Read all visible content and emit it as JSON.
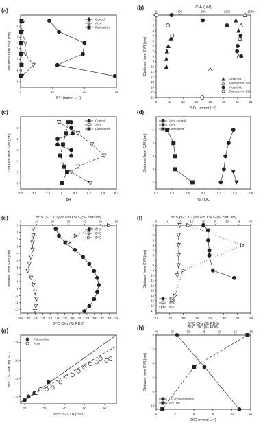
{
  "chart_data": [
    {
      "panel": "(a)",
      "type": "line",
      "xlabel": "S²⁻ (mmol L⁻¹)",
      "ylabel": "Distance from SWI (cm)",
      "xlim": [
        0,
        30
      ],
      "ylim": [
        6.5,
        0
      ],
      "y_inverted": true,
      "xticks": [
        0,
        10,
        20,
        30
      ],
      "yticks": [
        1,
        2,
        3,
        4,
        5,
        6
      ],
      "legend": "top-right",
      "series": [
        {
          "name": "Control",
          "marker": "circle-filled",
          "dash": "solid",
          "x": [
            9,
            12,
            20,
            19.5,
            11.5,
            29.5
          ],
          "y": [
            0.5,
            1.5,
            2.5,
            3.5,
            4.5,
            5.5
          ]
        },
        {
          "name": "Acre",
          "marker": "triangle-down-open",
          "dash": "dashed",
          "x": [
            1,
            0.5,
            1.5,
            1.5,
            4,
            0.5
          ],
          "y": [
            0.5,
            1.5,
            2.5,
            3.5,
            4.5,
            5.5
          ]
        },
        {
          "name": "Palmachim",
          "marker": "square-filled",
          "dash": "dashdot",
          "x": [
            0.3,
            0.2,
            0.2,
            0.2,
            0.3,
            0.2
          ],
          "y": [
            0.5,
            1.5,
            2.5,
            3.5,
            4.5,
            5.5
          ]
        }
      ]
    },
    {
      "panel": "(b)",
      "type": "scatter",
      "xlabel": "SO₄ (mmol L⁻¹)",
      "x2label": "CH₄ (μM)",
      "ylabel": "Distance from SWI (cm)",
      "xlim": [
        0,
        35
      ],
      "x2lim": [
        0,
        1600
      ],
      "ylim": [
        16,
        0
      ],
      "y_inverted": true,
      "xticks": [
        0,
        5,
        10,
        15,
        20,
        25,
        30,
        35
      ],
      "x2ticks": [
        0,
        400,
        800,
        1200,
        1600
      ],
      "yticks": [
        0,
        1,
        2,
        3,
        4,
        5,
        6,
        7,
        8,
        9,
        10,
        11,
        12,
        13,
        14,
        15,
        16
      ],
      "legend": "bottom-right",
      "series": [
        {
          "name": "Acre SO₄",
          "marker": "triangle-filled",
          "axis": "bottom",
          "x": [
            29.5,
            30.5,
            5.5,
            4.5,
            4.0,
            3.8,
            3.8
          ],
          "y": [
            1,
            3,
            4.5,
            6,
            7,
            8.5,
            10
          ]
        },
        {
          "name": "Palmachim SO₄",
          "marker": "triangle-open",
          "axis": "bottom",
          "x": [
            33,
            31.5,
            31,
            30.5,
            20
          ],
          "y": [
            0,
            2,
            4.5,
            8,
            10.5
          ]
        },
        {
          "name": "Acre CH₄",
          "marker": "circle-filled",
          "axis": "top",
          "x": [
            260,
            790,
            1200,
            1430,
            1380,
            1370,
            1440
          ],
          "y": [
            0,
            1,
            2,
            4,
            6,
            7,
            8
          ]
        },
        {
          "name": "Palmachim CH₄",
          "marker": "circle-open",
          "axis": "top",
          "x": [
            0,
            200,
            270,
            780
          ],
          "y": [
            0,
            2,
            4,
            16
          ]
        }
      ]
    },
    {
      "panel": "(c)",
      "type": "line",
      "xlabel": "pH",
      "ylabel": "Distance from SWI (cm)",
      "xlim": [
        7.7,
        8.4
      ],
      "ylim": [
        6.5,
        0
      ],
      "y_inverted": true,
      "xticks": [
        7.7,
        7.8,
        7.9,
        8.0,
        8.1,
        8.2,
        8.3,
        8.4
      ],
      "yticks": [
        1,
        2,
        3,
        4,
        5,
        6
      ],
      "legend": "top-right",
      "series": [
        {
          "name": "Control",
          "marker": "circle-filled",
          "dash": "solid",
          "x": [
            8.07,
            8.07,
            8.08,
            7.97,
            7.97,
            8.07,
            8.07
          ],
          "y": [
            0.5,
            1,
            1.5,
            2,
            2.5,
            3,
            3.5
          ]
        },
        {
          "name": "Acre",
          "marker": "triangle-down-open",
          "dash": "dashed",
          "x": [
            7.98,
            8.12,
            8.22,
            8.31,
            8.12,
            8.07,
            8.21
          ],
          "y": [
            0.5,
            1.5,
            2.5,
            3.5,
            4.5,
            5,
            6
          ]
        },
        {
          "name": "Palmachim",
          "marker": "square-filled",
          "dash": "dashdot",
          "x": [
            8.05,
            8.03,
            8.01,
            7.99,
            8.02,
            8.04,
            8.0
          ],
          "y": [
            0.5,
            1.5,
            2.5,
            3.5,
            4.5,
            5,
            6
          ]
        }
      ]
    },
    {
      "panel": "(d)",
      "type": "line",
      "xlabel": "% TOC",
      "ylabel": "Distance from SWI (cm)",
      "xlim": [
        0.3,
        0.9
      ],
      "ylim": [
        5.5,
        0
      ],
      "y_inverted": true,
      "xticks": [
        0.3,
        0.4,
        0.5,
        0.6,
        0.7,
        0.8,
        0.9
      ],
      "yticks": [
        1,
        2,
        3,
        4,
        5
      ],
      "legend": "top-left",
      "series": [
        {
          "name": "Acre control",
          "marker": "circle-filled",
          "dash": "solid",
          "x": [
            0.79,
            0.76,
            0.74,
            0.73,
            0.71
          ],
          "y": [
            1,
            2,
            3,
            4,
            5
          ]
        },
        {
          "name": "Acre",
          "marker": "triangle-down-filled",
          "dash": "solid",
          "x": [
            0.79,
            0.81
          ],
          "y": [
            4.2,
            5
          ]
        },
        {
          "name": "Palmachim",
          "marker": "square-filled",
          "dash": "solid",
          "x": [
            0.37,
            0.41,
            0.42,
            0.42,
            0.53
          ],
          "y": [
            1,
            2,
            3,
            4,
            5
          ]
        }
      ]
    },
    {
      "panel": "(e)",
      "type": "line",
      "xlabel": "δ¹³C CH₄ (‰ PDB)",
      "x2label": "δ³⁴S (‰ CDT) or δ¹⁸O SO₄ (‰ SMOW)",
      "ylabel": "Distance from SWI (cm)",
      "xlim": [
        -82,
        -56
      ],
      "x2lim": [
        0,
        60
      ],
      "ylim": [
        12.5,
        0
      ],
      "y_inverted": true,
      "xticks": [
        -82,
        -80,
        -78,
        -76,
        -74,
        -72,
        -70,
        -68,
        -66,
        -64,
        -62,
        -60,
        -58,
        -56
      ],
      "x2ticks": [
        0,
        10,
        20,
        30,
        40,
        50,
        60
      ],
      "yticks": [
        0,
        1,
        2,
        3,
        4,
        5,
        6,
        7,
        8,
        9,
        10,
        11,
        12
      ],
      "legend": "top-right",
      "series": [
        {
          "name": "δ³⁴S",
          "marker": "circle-filled",
          "dash": "solid",
          "axis": "top",
          "x": [
            22,
            24,
            28,
            34,
            39,
            43,
            46,
            48,
            49,
            48,
            46,
            43,
            40
          ],
          "y": [
            0.5,
            1.5,
            2.5,
            3.5,
            4.5,
            5.5,
            6.5,
            7.5,
            8.5,
            9.5,
            10.5,
            11.5,
            12.2
          ]
        },
        {
          "name": "δ¹⁸O",
          "marker": "triangle-down-open",
          "dash": "dashed",
          "axis": "top",
          "x": [
            8,
            8,
            7.5,
            7.5,
            6.5,
            5.5,
            4.5,
            6.5,
            8,
            9,
            10,
            9.5,
            9
          ],
          "y": [
            0.5,
            1.5,
            2.5,
            3.5,
            4.5,
            5.5,
            6.5,
            7.5,
            8.5,
            9.5,
            10.5,
            11.5,
            12.2
          ]
        },
        {
          "name": "δ¹³C",
          "marker": "triangle-right-open",
          "dash": "dotted",
          "axis": "bottom",
          "x": [
            -58,
            -63,
            -67,
            -69
          ],
          "y": [
            0,
            0.5,
            1.5,
            2.5
          ]
        }
      ]
    },
    {
      "panel": "(f)",
      "type": "line",
      "xlabel": "δ¹³C CH₄ (‰ PDB)",
      "x2label": "δ³⁴S (‰ CDT) or δ¹⁸O SO₄ (‰ SMOW)",
      "ylabel": "Distance from SWI (cm)",
      "xlim": [
        -75,
        -40
      ],
      "x2lim": [
        0,
        40
      ],
      "ylim": [
        17.5,
        0
      ],
      "y_inverted": true,
      "xticks": [
        -75,
        -70,
        -65,
        -60,
        -55,
        -50,
        -45,
        -40
      ],
      "x2ticks": [
        0,
        5,
        10,
        15,
        20,
        25,
        30,
        35,
        40
      ],
      "yticks": [
        0,
        1,
        2,
        3,
        4,
        5,
        6,
        7,
        8,
        9,
        10,
        11,
        12,
        13,
        14,
        15,
        16,
        17
      ],
      "legend": "bottom-left",
      "series": [
        {
          "name": "δ³⁴S",
          "marker": "circle-filled",
          "dash": "solid",
          "axis": "top",
          "x": [
            20,
            22,
            22,
            22.5,
            22.5,
            24,
            33
          ],
          "y": [
            0,
            1,
            3,
            5,
            6,
            9,
            10.5
          ]
        },
        {
          "name": "δ¹⁸O",
          "marker": "triangle-down-open",
          "dash": "dashed",
          "axis": "top",
          "x": [
            10,
            9.5,
            9.5,
            9.5,
            9.5,
            9
          ],
          "y": [
            0,
            2,
            4,
            6,
            8,
            10
          ]
        },
        {
          "name": "δ¹³C",
          "marker": "triangle-right-open",
          "dash": "dotted",
          "axis": "bottom",
          "x": [
            -63,
            -43,
            -65,
            -68,
            -69
          ],
          "y": [
            0,
            4,
            9,
            14,
            15
          ]
        }
      ]
    },
    {
      "panel": "(g)",
      "type": "scatter",
      "xlabel": "δ³⁴S (‰ CDT) SO₄",
      "ylabel": "δ¹⁸O (‰ SMOW) SO₄",
      "xlim": [
        18,
        66
      ],
      "ylim": [
        8,
        27
      ],
      "xticks": [
        20,
        30,
        40,
        50,
        60
      ],
      "yticks": [
        10,
        15,
        20,
        25
      ],
      "legend": "top-left",
      "series": [
        {
          "name": "Palmachim",
          "marker": "circle-filled",
          "x": [
            20,
            22,
            25,
            32
          ],
          "y": [
            9,
            10,
            11,
            14
          ],
          "fit": {
            "x": [
              18,
              66
            ],
            "y": [
              8.2,
              27
            ]
          }
        },
        {
          "name": "Acre",
          "marker": "circle-open",
          "x": [
            26,
            28,
            31,
            34,
            38,
            41,
            44,
            47,
            50,
            53,
            56,
            58,
            61,
            63
          ],
          "y": [
            11,
            12,
            12,
            12.5,
            14,
            15.5,
            16,
            17,
            18,
            19,
            19.5,
            20.5,
            20,
            20.5
          ],
          "fit": {
            "x": [
              18,
              66
            ],
            "y": [
              8.5,
              24
            ]
          }
        }
      ]
    },
    {
      "panel": "(h)",
      "type": "line",
      "xlabel": "DIC (mmol L⁻¹)",
      "x2label": "δ¹³C DIC (‰ PDB)",
      "ylabel": "Distance from SWI (cm)",
      "xlim": [
        2,
        12
      ],
      "x2lim": [
        -40,
        -10
      ],
      "ylim": [
        10.5,
        0
      ],
      "y_inverted": true,
      "xticks": [
        2,
        4,
        6,
        8,
        10,
        12
      ],
      "x2ticks": [
        -40,
        -35,
        -30,
        -25,
        -20,
        -15,
        -10
      ],
      "yticks": [
        0,
        2,
        4,
        6,
        8,
        10
      ],
      "legend": "bottom-left",
      "series": [
        {
          "name": "DIC concentration",
          "marker": "circle-filled",
          "dash": "solid",
          "axis": "bottom",
          "x": [
            4.2,
            7.1,
            10.8
          ],
          "y": [
            0,
            4.5,
            10.5
          ]
        },
        {
          "name": "δ¹³C DIC",
          "marker": "square-filled",
          "dash": "dashed",
          "axis": "top",
          "x": [
            -11,
            -28,
            -38
          ],
          "y": [
            0,
            4.5,
            10.5
          ]
        }
      ]
    }
  ]
}
